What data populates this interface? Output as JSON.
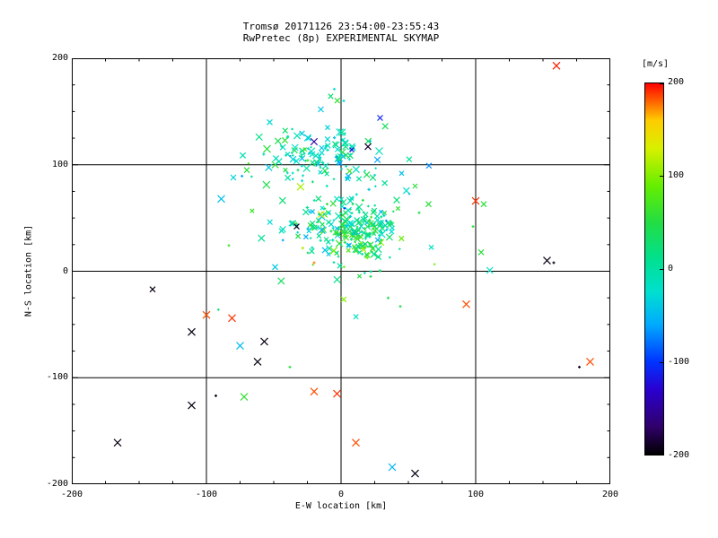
{
  "chart_data": {
    "type": "scatter",
    "title": "Tromsø 20171126 23:54:00-23:55:43",
    "subtitle": "RwPretec (8p) EXPERIMENTAL SKYMAP",
    "xlabel": "E-W location [km]",
    "ylabel": "N-S location [km]",
    "xlim": [
      -200,
      200
    ],
    "ylim": [
      -200,
      200
    ],
    "xticks": [
      -200,
      -100,
      0,
      100,
      200
    ],
    "yticks": [
      -200,
      -100,
      0,
      100,
      200
    ],
    "grid": true,
    "background": "#ffffff",
    "axis_color": "#000000",
    "seed": 1234,
    "colorbar": {
      "label": "[m/s]",
      "min": -200,
      "max": 200,
      "ticks": [
        200,
        100,
        0,
        -100,
        -200
      ],
      "stops": [
        {
          "v": -200,
          "color": "#000000"
        },
        {
          "v": -170,
          "color": "#30006a"
        },
        {
          "v": -130,
          "color": "#2a00d0"
        },
        {
          "v": -100,
          "color": "#0033ff"
        },
        {
          "v": -60,
          "color": "#00aaff"
        },
        {
          "v": -25,
          "color": "#00e0d0"
        },
        {
          "v": 10,
          "color": "#00e090"
        },
        {
          "v": 50,
          "color": "#22dd44"
        },
        {
          "v": 90,
          "color": "#66ee00"
        },
        {
          "v": 130,
          "color": "#d8f000"
        },
        {
          "v": 160,
          "color": "#ffcc00"
        },
        {
          "v": 180,
          "color": "#ff6600"
        },
        {
          "v": 200,
          "color": "#ff0000"
        }
      ]
    },
    "clusters": [
      {
        "cx": -18,
        "cy": 107,
        "sx": 20,
        "sy": 11,
        "n": 120,
        "vm": -15,
        "vs": 35,
        "dot_frac": 0.4
      },
      {
        "cx": 8,
        "cy": 38,
        "sx": 17,
        "sy": 15,
        "n": 230,
        "vm": 20,
        "vs": 40,
        "dot_frac": 0.4
      },
      {
        "cx": -5,
        "cy": 70,
        "sx": 45,
        "sy": 45,
        "n": 55,
        "vm": 5,
        "vs": 55,
        "dot_frac": 0.5
      }
    ],
    "outliers": [
      [
        160,
        193,
        195,
        4
      ],
      [
        100,
        66,
        190,
        4
      ],
      [
        106,
        63,
        55,
        3
      ],
      [
        93,
        -31,
        185,
        4
      ],
      [
        153,
        10,
        -195,
        4
      ],
      [
        158,
        8,
        -195,
        1.5,
        "d"
      ],
      [
        -140,
        -17,
        -195,
        3
      ],
      [
        -100,
        -41,
        185,
        4
      ],
      [
        -81,
        -44,
        190,
        4
      ],
      [
        -89,
        68,
        -45,
        4
      ],
      [
        -111,
        -57,
        -195,
        4
      ],
      [
        -57,
        -66,
        -195,
        4
      ],
      [
        -75,
        -70,
        -50,
        4
      ],
      [
        -62,
        -85,
        -195,
        4
      ],
      [
        -38,
        -90,
        55,
        1.5,
        "d"
      ],
      [
        -20,
        -113,
        185,
        4
      ],
      [
        -3,
        -115,
        190,
        4
      ],
      [
        -72,
        -118,
        60,
        4
      ],
      [
        -111,
        -126,
        -195,
        4
      ],
      [
        -93,
        -117,
        -195,
        1.5,
        "d"
      ],
      [
        -166,
        -161,
        -195,
        4
      ],
      [
        11,
        -161,
        185,
        4
      ],
      [
        38,
        -184,
        -55,
        4
      ],
      [
        55,
        -190,
        -195,
        4
      ],
      [
        177,
        -90,
        -195,
        1.5,
        "d"
      ],
      [
        185,
        -85,
        185,
        4
      ],
      [
        29,
        144,
        -110,
        3
      ],
      [
        -15,
        152,
        -40,
        3
      ],
      [
        -5,
        171,
        -25,
        1.5,
        "d"
      ],
      [
        2,
        160,
        -30,
        1.5,
        "d"
      ],
      [
        -53,
        140,
        -30,
        3
      ],
      [
        -10,
        135,
        -35,
        2.5
      ],
      [
        20,
        117,
        -185,
        3.5
      ],
      [
        8,
        114,
        -120,
        2.5
      ],
      [
        65,
        63,
        55,
        3
      ],
      [
        58,
        55,
        50,
        1.5,
        "d"
      ],
      [
        -70,
        95,
        55,
        3
      ],
      [
        -80,
        88,
        -35,
        3
      ],
      [
        -33,
        42,
        -190,
        3
      ],
      [
        -49,
        4,
        -40,
        3
      ],
      [
        -20,
        8,
        175,
        1.5,
        "d"
      ],
      [
        22,
        -5,
        45,
        1.5,
        "d"
      ],
      [
        35,
        -25,
        50,
        1.5,
        "d"
      ],
      [
        44,
        -33,
        45,
        1.5,
        "d"
      ],
      [
        45,
        92,
        -45,
        2.5
      ],
      [
        55,
        80,
        55,
        2.5
      ],
      [
        98,
        42,
        55,
        1.5,
        "d"
      ]
    ]
  }
}
